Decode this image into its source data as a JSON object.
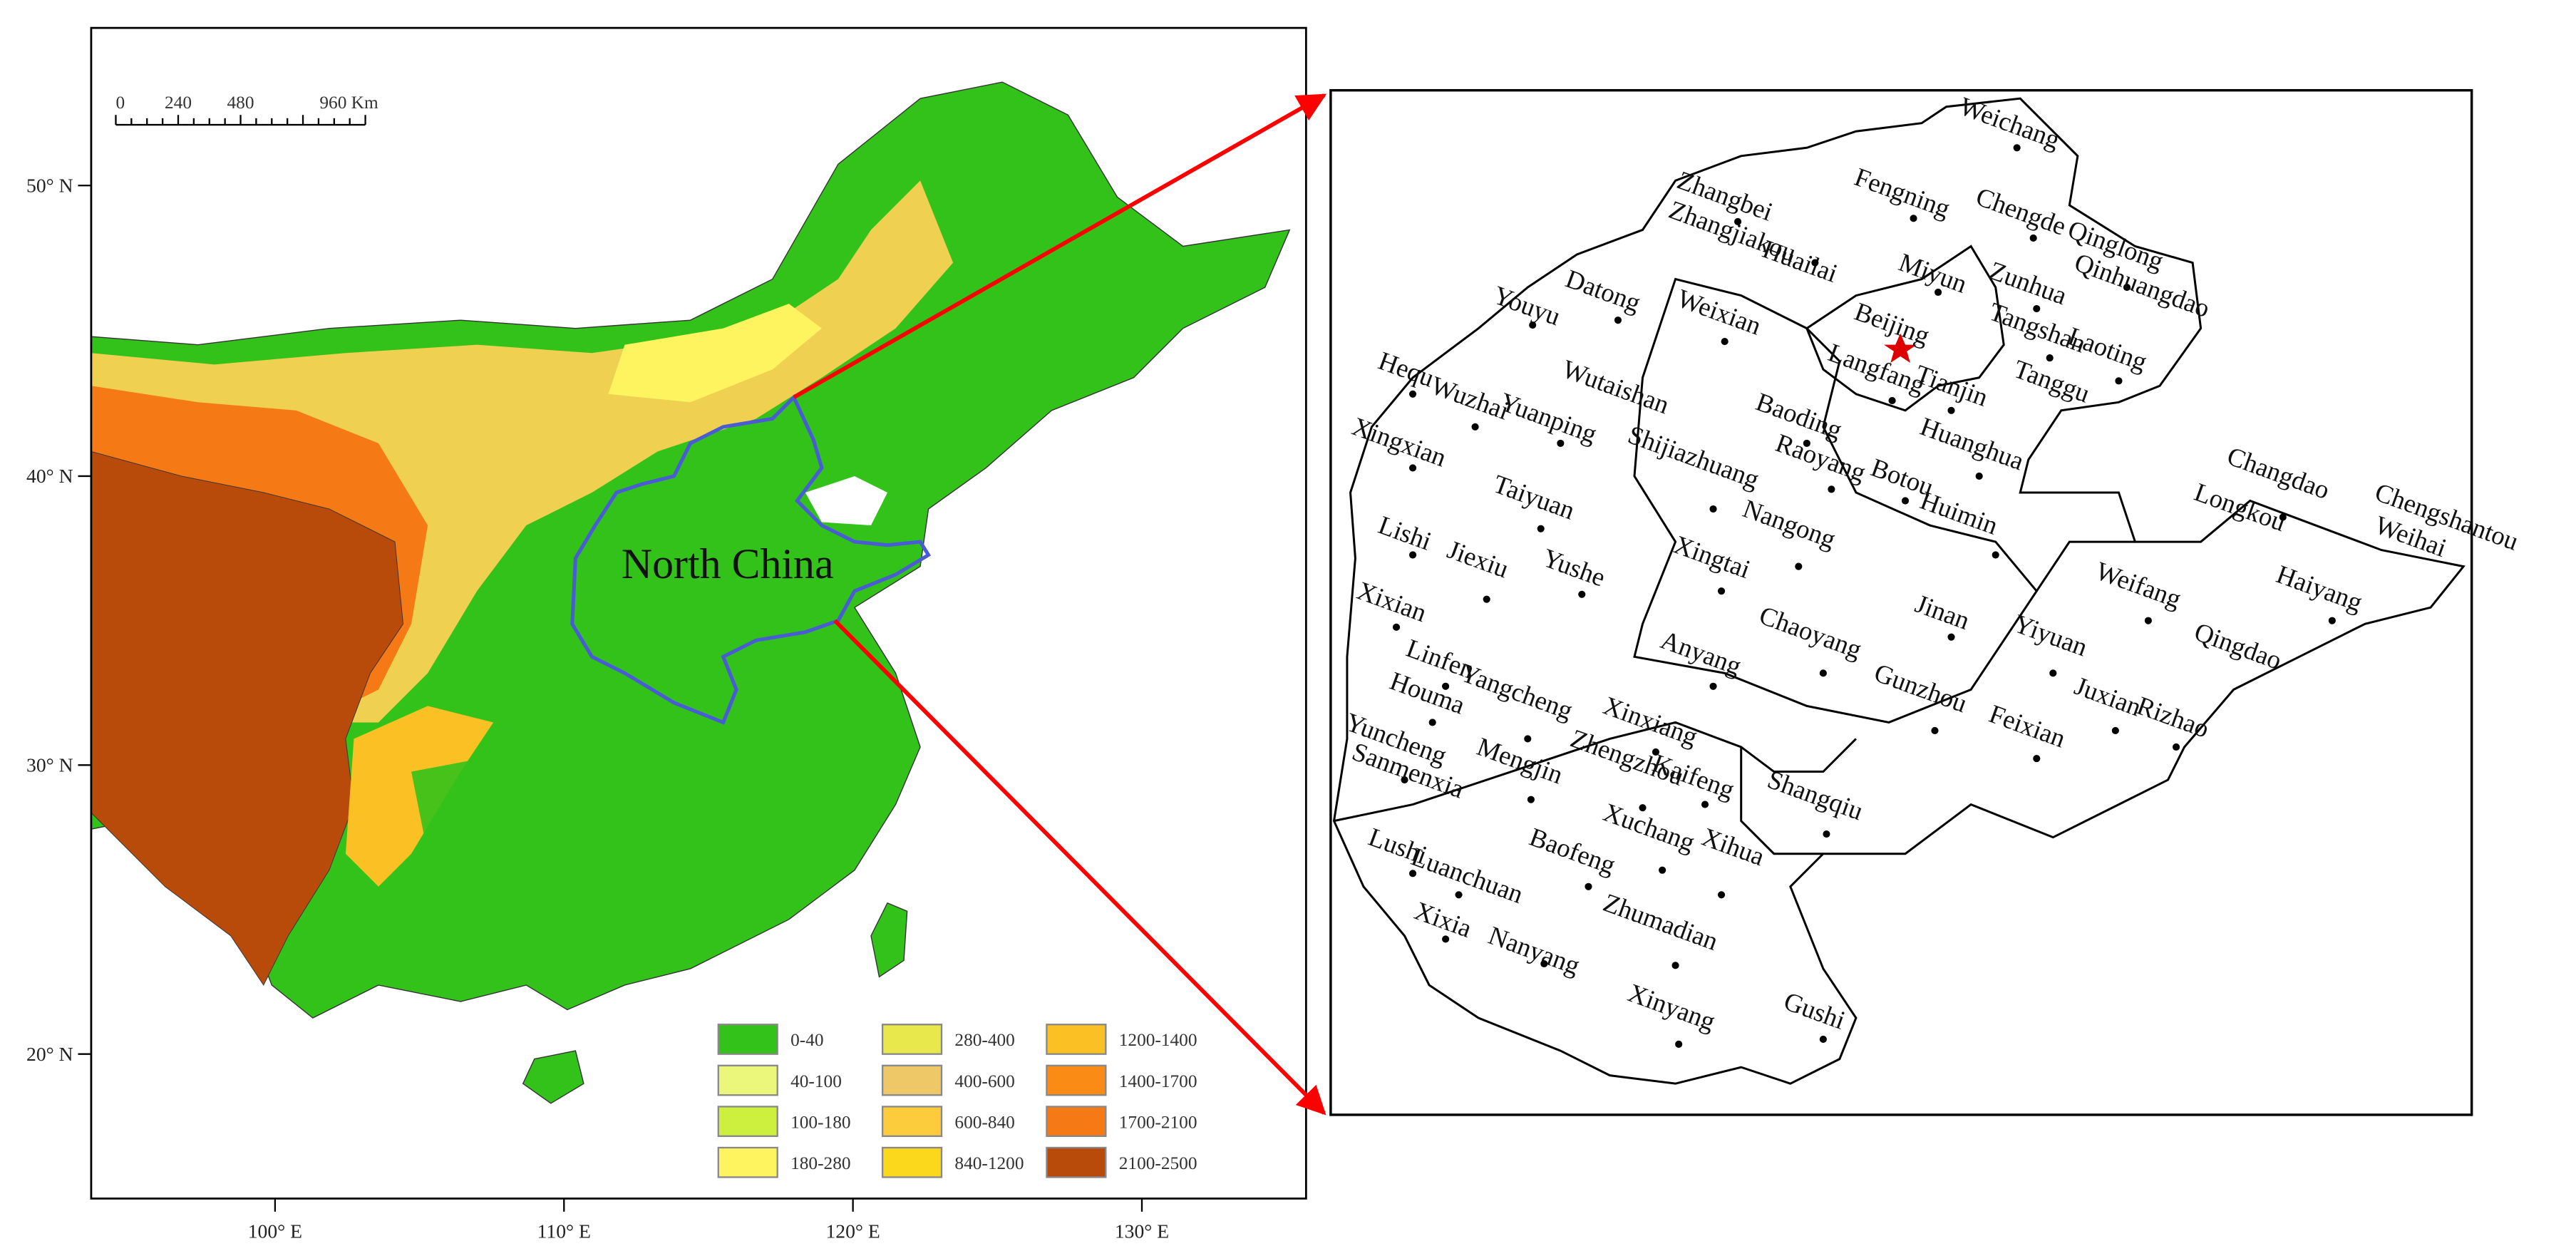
{
  "map": {
    "lat_labels": [
      "50° N",
      "40° N",
      "30° N",
      "20° N"
    ],
    "lon_labels": [
      "100° E",
      "110° E",
      "120° E",
      "130° E"
    ],
    "scale_bar": [
      "0",
      "240",
      "480",
      "960 Km"
    ],
    "region_label": "North China",
    "legend": [
      {
        "label": "0-40",
        "color": "#33c21a"
      },
      {
        "label": "40-100",
        "color": "#eaf77a"
      },
      {
        "label": "100-180",
        "color": "#cdef3e"
      },
      {
        "label": "180-280",
        "color": "#fdf460"
      },
      {
        "label": "280-400",
        "color": "#e8e84c"
      },
      {
        "label": "400-600",
        "color": "#eec866"
      },
      {
        "label": "600-840",
        "color": "#fccc3c"
      },
      {
        "label": "840-1200",
        "color": "#fcd81c"
      },
      {
        "label": "1200-1400",
        "color": "#fac024"
      },
      {
        "label": "1400-1700",
        "color": "#fa8c16"
      },
      {
        "label": "1700-2100",
        "color": "#f57a16"
      },
      {
        "label": "2100-2500",
        "color": "#b84a0a"
      }
    ]
  },
  "inset": {
    "stations": [
      "Weichang",
      "Zhangbei",
      "Fengning",
      "Chengde",
      "Zhangjiakou",
      "Qinglong",
      "Huailai",
      "Miyun",
      "Zunhua",
      "Qinhuangdao",
      "Youyu",
      "Datong",
      "Weixian",
      "Beijing",
      "Tangshan",
      "Laoting",
      "Langfang",
      "Tianjin",
      "Tanggu",
      "Hequ",
      "Wuzhai",
      "Wutaishan",
      "Yuanping",
      "Baoding",
      "Huanghua",
      "Xingxian",
      "Shijiazhuang",
      "Raoyang",
      "Botou",
      "Huimin",
      "Taiyuan",
      "Nangong",
      "Lishi",
      "Jiexiu",
      "Yushe",
      "Xingtai",
      "Xixian",
      "Jinan",
      "Yiyuan",
      "Weifang",
      "Changdao",
      "Longkou",
      "Chengshantou",
      "Weihai",
      "Haiyang",
      "Qingdao",
      "Linfen",
      "Chaoyang",
      "Anyang",
      "Houma",
      "Yangcheng",
      "Gunzhou",
      "Juxian",
      "Feixian",
      "Rizhao",
      "Xinxiang",
      "Yuncheng",
      "Sanmenxia",
      "Mengjin",
      "Zhengzhou",
      "Kaifeng",
      "Shangqiu",
      "Xuchang",
      "Xihua",
      "Lushi",
      "Luanchuan",
      "Baofeng",
      "Zhumadian",
      "Xixia",
      "Nanyang",
      "Xinyang",
      "Gushi"
    ]
  }
}
